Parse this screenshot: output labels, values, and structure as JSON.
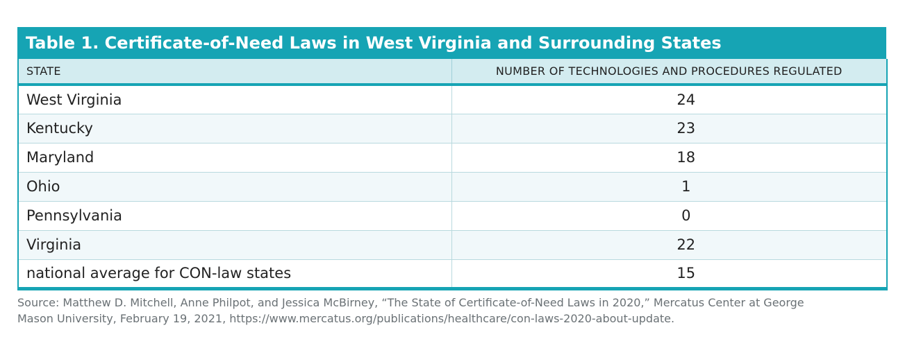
{
  "table": {
    "title": "Table 1. Certificate-of-Need Laws in West Virginia and Surrounding States",
    "headers": {
      "state": "STATE",
      "count": "NUMBER OF TECHNOLOGIES AND PROCEDURES REGULATED"
    },
    "rows": [
      {
        "state": "West Virginia",
        "value": "24"
      },
      {
        "state": "Kentucky",
        "value": "23"
      },
      {
        "state": "Maryland",
        "value": "18"
      },
      {
        "state": "Ohio",
        "value": "1"
      },
      {
        "state": "Pennsylvania",
        "value": "0"
      },
      {
        "state": "Virginia",
        "value": "22"
      },
      {
        "state": "national average for CON-law states",
        "value": "15"
      }
    ]
  },
  "source": {
    "line1": "Source: Matthew D. Mitchell, Anne Philpot, and Jessica McBirney, “The State of Certificate-of-Need Laws in 2020,” Mercatus Center at George",
    "line2": "Mason University, February 19, 2021, https://www.mercatus.org/publications/healthcare/con-laws-2020-about-update."
  },
  "colors": {
    "accent": "#16a4b4",
    "header_bg": "#d3ecf0",
    "source_text": "#6a7175"
  }
}
